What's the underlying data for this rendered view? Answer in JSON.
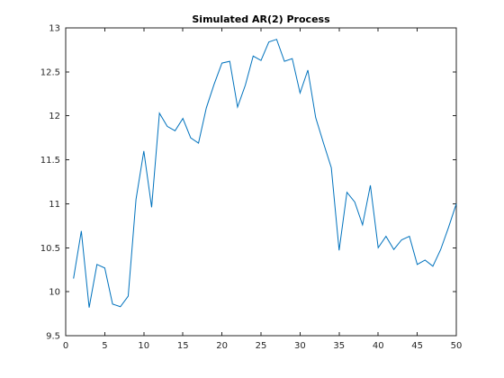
{
  "chart_data": {
    "type": "line",
    "title": "Simulated AR(2) Process",
    "xlabel": "",
    "ylabel": "",
    "xlim": [
      0,
      50
    ],
    "ylim": [
      9.5,
      13
    ],
    "xticks": [
      0,
      5,
      10,
      15,
      20,
      25,
      30,
      35,
      40,
      45,
      50
    ],
    "yticks": [
      9.5,
      10,
      10.5,
      11,
      11.5,
      12,
      12.5,
      13
    ],
    "grid": false,
    "line_color": "#0072bd",
    "series": [
      {
        "x": [
          1,
          2,
          3,
          4,
          5,
          6,
          7,
          8,
          9,
          10,
          11,
          12,
          13,
          14,
          15,
          16,
          17,
          18,
          19,
          20,
          21,
          22,
          23,
          24,
          25,
          26,
          27,
          28,
          29,
          30,
          31,
          32,
          33,
          34,
          35,
          36,
          37,
          38,
          39,
          40,
          41,
          42,
          43,
          44,
          45,
          46,
          47,
          48,
          49,
          50
        ],
        "values": [
          10.15,
          10.69,
          9.82,
          10.31,
          10.27,
          9.86,
          9.83,
          9.95,
          11.05,
          11.6,
          10.96,
          12.03,
          11.88,
          11.83,
          11.97,
          11.75,
          11.69,
          12.09,
          12.36,
          12.6,
          12.62,
          12.1,
          12.35,
          12.68,
          12.63,
          12.84,
          12.87,
          12.62,
          12.65,
          12.26,
          12.52,
          11.98,
          11.69,
          11.41,
          10.47,
          11.13,
          11.02,
          10.76,
          11.21,
          10.5,
          10.63,
          10.48,
          10.59,
          10.63,
          10.31,
          10.36,
          10.29,
          10.48,
          10.73,
          11.0
        ]
      }
    ]
  }
}
